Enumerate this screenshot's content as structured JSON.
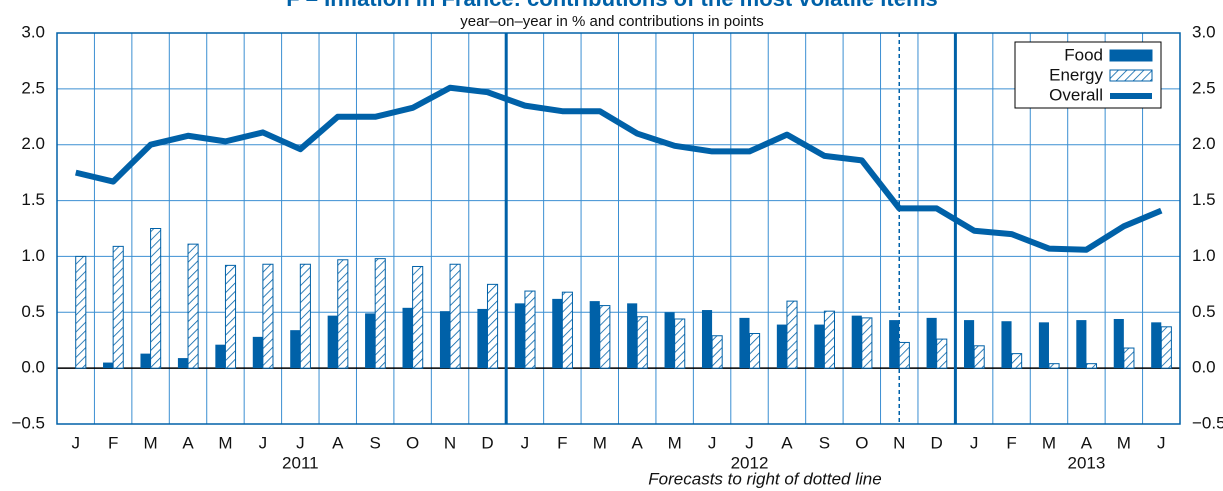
{
  "chart_data": {
    "type": "bar",
    "title": "F – Inflation in France: contributions of the most volatile items",
    "subtitle": "year–on–year in % and contributions in points",
    "footnote": "Forecasts to right of dotted line",
    "categories": [
      "J",
      "F",
      "M",
      "A",
      "M",
      "J",
      "J",
      "A",
      "S",
      "O",
      "N",
      "D",
      "J",
      "F",
      "M",
      "A",
      "M",
      "J",
      "J",
      "A",
      "S",
      "O",
      "N",
      "D",
      "J",
      "F",
      "M",
      "A",
      "M",
      "J"
    ],
    "years": [
      "2011",
      "2012",
      "2013"
    ],
    "series": [
      {
        "name": "Food",
        "type": "bar",
        "color": "#0061a8",
        "values": [
          0,
          0.05,
          0.13,
          0.09,
          0.21,
          0.28,
          0.34,
          0.47,
          0.49,
          0.54,
          0.51,
          0.53,
          0.58,
          0.62,
          0.6,
          0.58,
          0.5,
          0.52,
          0.45,
          0.39,
          0.39,
          0.47,
          0.43,
          0.45,
          0.43,
          0.42,
          0.41,
          0.43,
          0.44,
          0.41
        ]
      },
      {
        "name": "Energy",
        "type": "bar",
        "pattern": "hatch",
        "color": "#0061a8",
        "values": [
          1.0,
          1.09,
          1.25,
          1.11,
          0.92,
          0.93,
          0.93,
          0.97,
          0.98,
          0.91,
          0.93,
          0.75,
          0.69,
          0.68,
          0.56,
          0.46,
          0.44,
          0.29,
          0.31,
          0.6,
          0.51,
          0.45,
          0.23,
          0.26,
          0.2,
          0.13,
          0.04,
          0.04,
          0.18,
          0.37
        ]
      },
      {
        "name": "Overall",
        "type": "line",
        "color": "#0061a8",
        "values": [
          1.75,
          1.67,
          2.0,
          2.08,
          2.03,
          2.11,
          1.96,
          2.25,
          2.25,
          2.33,
          2.51,
          2.47,
          2.35,
          2.3,
          2.3,
          2.1,
          1.99,
          1.94,
          1.94,
          2.09,
          1.9,
          1.86,
          1.43,
          1.43,
          1.23,
          1.2,
          1.07,
          1.06,
          1.27,
          1.41
        ]
      }
    ],
    "ylim": [
      -0.5,
      3.0
    ],
    "yticks": [
      {
        "value": -0.5,
        "label": "−0.5"
      },
      {
        "value": 0,
        "label": "0.0"
      },
      {
        "value": 0.5,
        "label": "0.5"
      },
      {
        "value": 1,
        "label": "1.0"
      },
      {
        "value": 1.5,
        "label": "1.5"
      },
      {
        "value": 2,
        "label": "2.0"
      },
      {
        "value": 2.5,
        "label": "2.5"
      },
      {
        "value": 3,
        "label": "3.0"
      }
    ],
    "grid": true,
    "legend": "top-right"
  }
}
